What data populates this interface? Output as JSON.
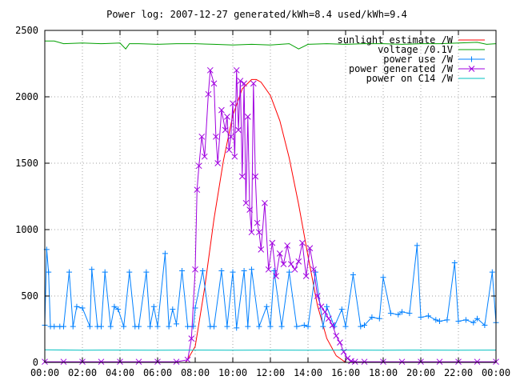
{
  "chart_data": {
    "type": "line",
    "title": "Power log: 2007-12-27 generated/kWh=8.4 used/kWh=9.4",
    "xlabel": "",
    "ylabel": "",
    "xlim": [
      0,
      24
    ],
    "ylim": [
      0,
      2500
    ],
    "x_ticks": [
      {
        "value": 0,
        "label": "00:00"
      },
      {
        "value": 2,
        "label": "02:00"
      },
      {
        "value": 4,
        "label": "04:00"
      },
      {
        "value": 6,
        "label": "06:00"
      },
      {
        "value": 8,
        "label": "08:00"
      },
      {
        "value": 10,
        "label": "10:00"
      },
      {
        "value": 12,
        "label": "12:00"
      },
      {
        "value": 14,
        "label": "14:00"
      },
      {
        "value": 16,
        "label": "16:00"
      },
      {
        "value": 18,
        "label": "18:00"
      },
      {
        "value": 20,
        "label": "20:00"
      },
      {
        "value": 22,
        "label": "22:00"
      },
      {
        "value": 24,
        "label": "00:00"
      }
    ],
    "y_ticks": [
      {
        "value": 0,
        "label": "0"
      },
      {
        "value": 500,
        "label": "500"
      },
      {
        "value": 1000,
        "label": "1000"
      },
      {
        "value": 1500,
        "label": "1500"
      },
      {
        "value": 2000,
        "label": "2000"
      },
      {
        "value": 2500,
        "label": "2500"
      }
    ],
    "grid": true,
    "legend_position": "top-right",
    "series": [
      {
        "name": "sunlight estimate /W",
        "color": "#ff0000",
        "marker": "none",
        "x": [
          7.5,
          8.0,
          8.5,
          9.0,
          9.5,
          10.0,
          10.5,
          11.0,
          11.25,
          11.5,
          12.0,
          12.5,
          13.0,
          13.5,
          14.0,
          14.5,
          15.0,
          15.5,
          16.0
        ],
        "y": [
          0,
          120,
          560,
          1080,
          1520,
          1860,
          2060,
          2130,
          2130,
          2110,
          2010,
          1820,
          1540,
          1190,
          800,
          430,
          180,
          50,
          0
        ]
      },
      {
        "name": "voltage /0.1V",
        "color": "#00a000",
        "marker": "none",
        "x": [
          0,
          0.5,
          1.0,
          2.0,
          3.0,
          4.0,
          4.3,
          4.5,
          5.0,
          6.0,
          7.0,
          8.0,
          9.0,
          10.0,
          11.0,
          12.0,
          13.0,
          13.5,
          14.0,
          15.0,
          16.0,
          17.0,
          18.0,
          19.0,
          20.0,
          21.0,
          22.0,
          23.0,
          23.5,
          24.0
        ],
        "y": [
          2420,
          2420,
          2400,
          2405,
          2400,
          2405,
          2360,
          2400,
          2400,
          2395,
          2400,
          2400,
          2395,
          2390,
          2395,
          2390,
          2400,
          2360,
          2395,
          2400,
          2395,
          2400,
          2400,
          2395,
          2400,
          2400,
          2405,
          2410,
          2395,
          2400
        ]
      },
      {
        "name": "power use /W",
        "color": "#0080ff",
        "marker": "plus",
        "x": [
          0,
          0.1,
          0.2,
          0.3,
          0.5,
          0.8,
          1.0,
          1.3,
          1.5,
          1.7,
          2.0,
          2.4,
          2.5,
          2.8,
          3.0,
          3.2,
          3.5,
          3.7,
          3.9,
          4.2,
          4.5,
          4.8,
          5.0,
          5.4,
          5.6,
          5.8,
          6.0,
          6.4,
          6.6,
          6.8,
          7.0,
          7.3,
          7.6,
          7.9,
          8.0,
          8.4,
          8.8,
          9.0,
          9.4,
          9.7,
          10.0,
          10.2,
          10.6,
          10.8,
          11.0,
          11.4,
          11.8,
          12.0,
          12.2,
          12.6,
          13.0,
          13.4,
          13.8,
          14.0,
          14.4,
          14.8,
          15.0,
          15.4,
          15.8,
          16.0,
          16.4,
          16.8,
          17.0,
          17.4,
          17.8,
          18.0,
          18.4,
          18.8,
          19.0,
          19.4,
          19.8,
          20.0,
          20.4,
          20.8,
          21.0,
          21.4,
          21.8,
          22.0,
          22.4,
          22.8,
          23.0,
          23.4,
          23.8,
          24.0
        ],
        "y": [
          280,
          850,
          680,
          270,
          270,
          270,
          270,
          680,
          270,
          420,
          410,
          270,
          700,
          270,
          270,
          680,
          270,
          420,
          400,
          270,
          680,
          270,
          270,
          680,
          270,
          420,
          270,
          820,
          270,
          400,
          290,
          690,
          270,
          270,
          410,
          690,
          270,
          270,
          690,
          270,
          680,
          260,
          690,
          270,
          700,
          270,
          420,
          270,
          690,
          270,
          680,
          270,
          280,
          270,
          680,
          270,
          420,
          270,
          400,
          270,
          660,
          270,
          280,
          340,
          330,
          640,
          370,
          360,
          380,
          370,
          880,
          340,
          350,
          320,
          310,
          320,
          750,
          310,
          320,
          300,
          330,
          280,
          680,
          300
        ]
      },
      {
        "name": "power generated /W",
        "color": "#a000e0",
        "marker": "x",
        "x": [
          0,
          1.0,
          2.0,
          3.0,
          4.0,
          5.0,
          6.0,
          7.0,
          7.6,
          7.8,
          8.0,
          8.1,
          8.2,
          8.35,
          8.5,
          8.7,
          8.8,
          9.0,
          9.1,
          9.2,
          9.4,
          9.6,
          9.7,
          9.8,
          9.9,
          10.0,
          10.1,
          10.2,
          10.3,
          10.4,
          10.5,
          10.6,
          10.7,
          10.8,
          10.9,
          11.0,
          11.1,
          11.2,
          11.3,
          11.4,
          11.5,
          11.7,
          11.9,
          12.1,
          12.3,
          12.5,
          12.7,
          12.9,
          13.1,
          13.3,
          13.5,
          13.7,
          13.9,
          14.1,
          14.3,
          14.5,
          14.7,
          14.9,
          15.1,
          15.3,
          15.5,
          15.7,
          15.9,
          16.1,
          16.3,
          16.5,
          17.0,
          18.0,
          19.0,
          20.0,
          21.0,
          22.0,
          23.0,
          24.0
        ],
        "y": [
          5,
          5,
          5,
          5,
          5,
          5,
          5,
          5,
          20,
          180,
          700,
          1300,
          1480,
          1700,
          1550,
          2020,
          2200,
          2100,
          1700,
          1500,
          1900,
          1750,
          1850,
          1600,
          1700,
          1950,
          1550,
          2200,
          1750,
          2120,
          1400,
          2100,
          1200,
          1850,
          1150,
          980,
          2100,
          1400,
          1050,
          980,
          850,
          1200,
          700,
          900,
          650,
          820,
          740,
          880,
          740,
          700,
          760,
          900,
          650,
          860,
          700,
          500,
          420,
          380,
          330,
          280,
          200,
          150,
          80,
          30,
          10,
          5,
          5,
          5,
          5,
          5,
          5,
          5,
          5,
          5
        ]
      },
      {
        "name": "power on C14 /W",
        "color": "#00c0c0",
        "marker": "none",
        "x": [
          0,
          2.0,
          4.0,
          6.0,
          8.0,
          10.0,
          12.0,
          14.0,
          16.0,
          18.0,
          20.0,
          22.0,
          24.0
        ],
        "y": [
          95,
          92,
          93,
          92,
          93,
          92,
          93,
          92,
          93,
          92,
          93,
          92,
          93
        ]
      }
    ]
  }
}
